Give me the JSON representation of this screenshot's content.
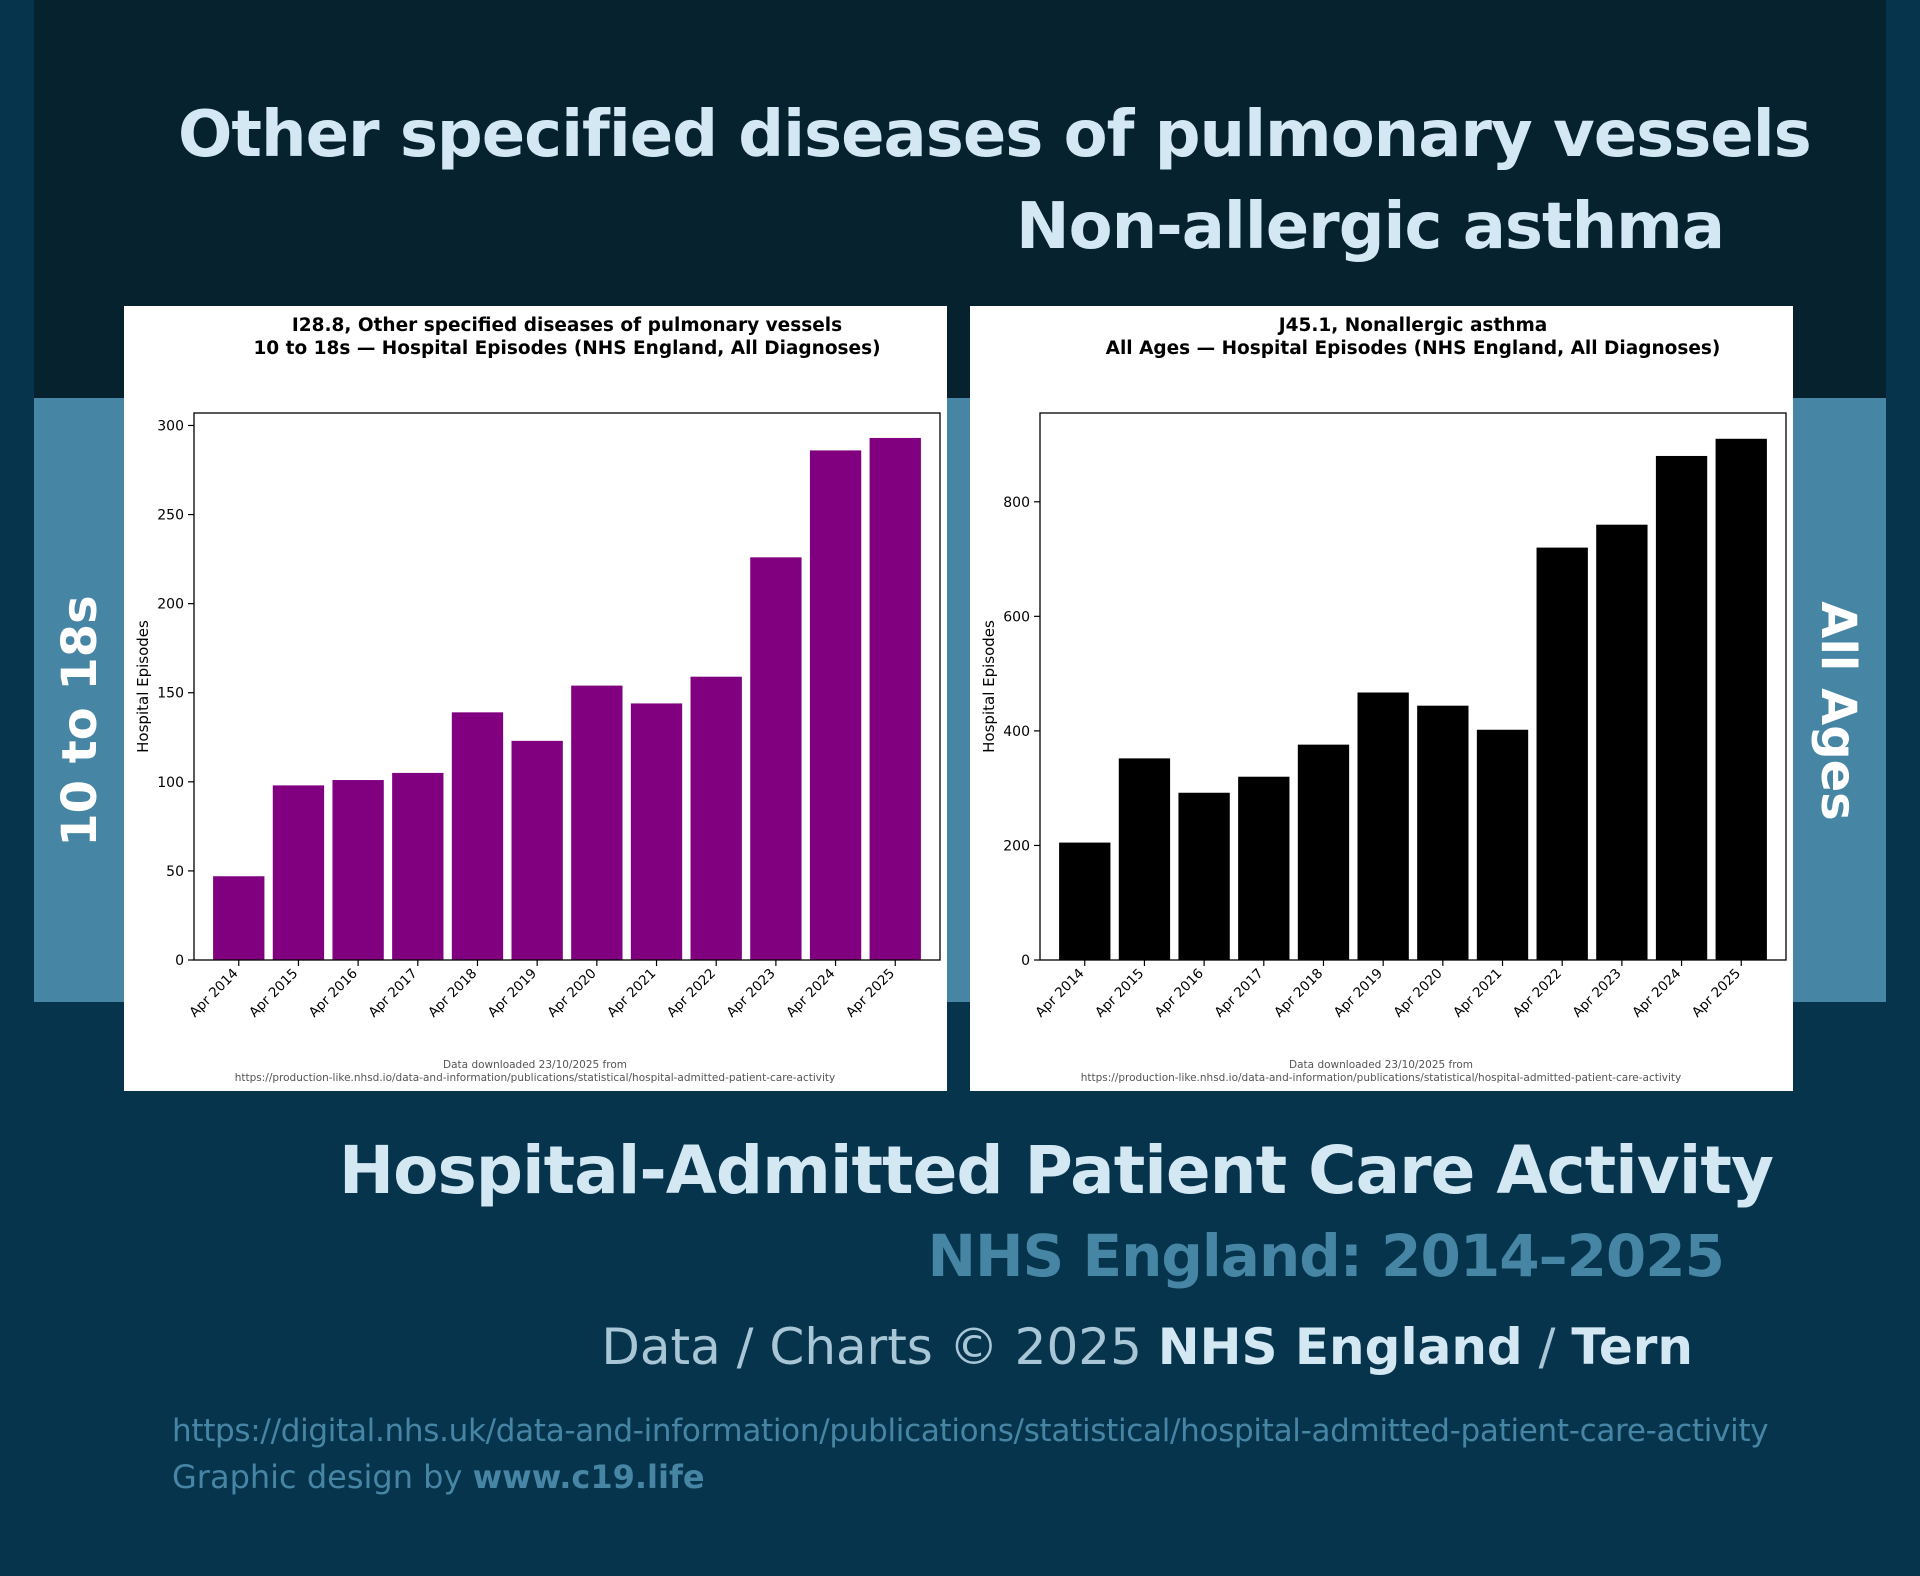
{
  "header": {
    "title_line1": "Other specified diseases of pulmonary vessels",
    "title_line2": "Non-allergic asthma"
  },
  "side_labels": {
    "left": "10 to 18s",
    "right": "All Ages"
  },
  "chart_data": [
    {
      "type": "bar",
      "title_line1": "I28.8, Other specified diseases of pulmonary vessels",
      "title_line2": "10 to 18s — Hospital Episodes (NHS England, All Diagnoses)",
      "xlabel": "",
      "ylabel": "Hospital Episodes",
      "categories": [
        "Apr 2014",
        "Apr 2015",
        "Apr 2016",
        "Apr 2017",
        "Apr 2018",
        "Apr 2019",
        "Apr 2020",
        "Apr 2021",
        "Apr 2022",
        "Apr 2023",
        "Apr 2024",
        "Apr 2025"
      ],
      "values": [
        47,
        98,
        101,
        105,
        139,
        123,
        154,
        144,
        159,
        226,
        286,
        293
      ],
      "ylim": [
        0,
        307
      ],
      "yticks": [
        0,
        50,
        100,
        150,
        200,
        250,
        300
      ],
      "bar_color": "#800080",
      "note_line1": "Data downloaded 23/10/2025 from",
      "note_line2": "https://production-like.nhsd.io/data-and-information/publications/statistical/hospital-admitted-patient-care-activity"
    },
    {
      "type": "bar",
      "title_line1": "J45.1, Nonallergic asthma",
      "title_line2": "All Ages — Hospital Episodes (NHS England, All Diagnoses)",
      "xlabel": "",
      "ylabel": "Hospital Episodes",
      "categories": [
        "Apr 2014",
        "Apr 2015",
        "Apr 2016",
        "Apr 2017",
        "Apr 2018",
        "Apr 2019",
        "Apr 2020",
        "Apr 2021",
        "Apr 2022",
        "Apr 2023",
        "Apr 2024",
        "Apr 2025"
      ],
      "values": [
        205,
        352,
        292,
        320,
        376,
        467,
        444,
        402,
        720,
        760,
        880,
        910
      ],
      "ylim": [
        0,
        955
      ],
      "yticks": [
        0,
        200,
        400,
        600,
        800
      ],
      "bar_color": "#000000",
      "note_line1": "Data downloaded 23/10/2025 from",
      "note_line2": "https://production-like.nhsd.io/data-and-information/publications/statistical/hospital-admitted-patient-care-activity"
    }
  ],
  "footer": {
    "title": "Hospital-Admitted Patient Care Activity",
    "subtitle": "NHS England: 2014–2025",
    "credit_prefix": "Data / Charts © 2025 ",
    "credit_org": "NHS England",
    "credit_sep": " / ",
    "credit_author": "Tern",
    "source_url": "https://digital.nhs.uk/data-and-information/publications/statistical/hospital-admitted-patient-care-activity",
    "design_prefix": "Graphic design by ",
    "design_site": "www.c19.life"
  }
}
